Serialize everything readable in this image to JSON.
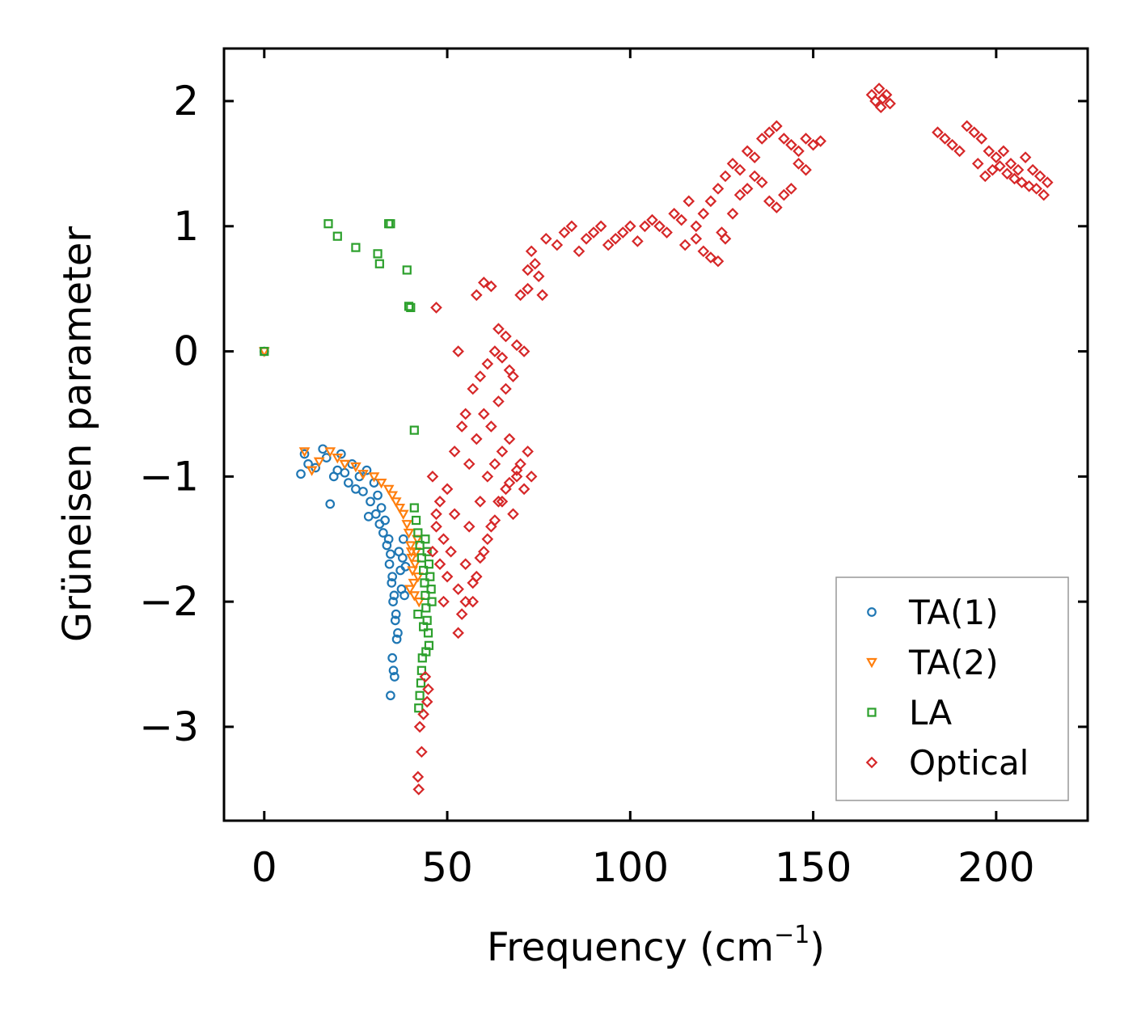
{
  "chart_data": {
    "type": "scatter",
    "title": "",
    "xlabel": "Frequency (cm",
    "xlabel_sup": "−1",
    "xlabel_close": ")",
    "ylabel": "Grüneisen parameter",
    "xlim": [
      -11,
      225
    ],
    "ylim": [
      -3.75,
      2.42
    ],
    "xticks": [
      0,
      50,
      100,
      150,
      200
    ],
    "xtick_labels": [
      "0",
      "50",
      "100",
      "150",
      "200"
    ],
    "yticks": [
      2,
      1,
      0,
      -1,
      -2,
      -3
    ],
    "ytick_labels": [
      "2",
      "1",
      "0",
      "−1",
      "−2",
      "−3"
    ],
    "legend_position": "lower-right",
    "series": [
      {
        "name": "TA(1)",
        "marker": "circle",
        "color": "#1f77b4",
        "points": [
          [
            0,
            0
          ],
          [
            10,
            -0.98
          ],
          [
            11,
            -0.82
          ],
          [
            12,
            -0.9
          ],
          [
            14,
            -0.93
          ],
          [
            16,
            -0.78
          ],
          [
            17,
            -0.85
          ],
          [
            18,
            -1.22
          ],
          [
            19,
            -1.0
          ],
          [
            20,
            -0.95
          ],
          [
            21,
            -0.82
          ],
          [
            22,
            -0.97
          ],
          [
            23,
            -1.05
          ],
          [
            24,
            -0.9
          ],
          [
            25,
            -1.1
          ],
          [
            26,
            -1.0
          ],
          [
            27,
            -1.12
          ],
          [
            28,
            -0.95
          ],
          [
            28.5,
            -1.32
          ],
          [
            29,
            -1.2
          ],
          [
            30,
            -1.05
          ],
          [
            30.5,
            -1.3
          ],
          [
            31,
            -1.15
          ],
          [
            31.5,
            -1.38
          ],
          [
            32,
            -1.25
          ],
          [
            32.5,
            -1.45
          ],
          [
            33,
            -1.35
          ],
          [
            33.5,
            -1.55
          ],
          [
            34,
            -1.5
          ],
          [
            34.2,
            -1.7
          ],
          [
            34.5,
            -1.62
          ],
          [
            34.8,
            -1.85
          ],
          [
            35,
            -1.8
          ],
          [
            35.2,
            -2.0
          ],
          [
            35.5,
            -1.95
          ],
          [
            35.8,
            -2.15
          ],
          [
            36,
            -2.1
          ],
          [
            36.2,
            -2.3
          ],
          [
            36.5,
            -2.25
          ],
          [
            35,
            -2.45
          ],
          [
            35.3,
            -2.55
          ],
          [
            35.6,
            -2.6
          ],
          [
            34.5,
            -2.75
          ],
          [
            36.8,
            -1.6
          ],
          [
            37.2,
            -1.75
          ],
          [
            37.5,
            -1.9
          ],
          [
            37.8,
            -1.65
          ],
          [
            38,
            -1.5
          ],
          [
            38.3,
            -1.95
          ],
          [
            38.6,
            -1.72
          ]
        ]
      },
      {
        "name": "TA(2)",
        "marker": "triangle",
        "color": "#ff7f0e",
        "points": [
          [
            0,
            0
          ],
          [
            11,
            -0.8
          ],
          [
            13,
            -0.95
          ],
          [
            15,
            -0.88
          ],
          [
            18,
            -0.8
          ],
          [
            20,
            -0.85
          ],
          [
            22,
            -0.9
          ],
          [
            25,
            -0.92
          ],
          [
            27,
            -0.98
          ],
          [
            30,
            -1.0
          ],
          [
            32,
            -1.05
          ],
          [
            34,
            -1.1
          ],
          [
            35,
            -1.15
          ],
          [
            36,
            -1.2
          ],
          [
            37,
            -1.25
          ],
          [
            38,
            -1.3
          ],
          [
            39,
            -1.38
          ],
          [
            39.5,
            -1.45
          ],
          [
            40,
            -1.55
          ],
          [
            40.3,
            -1.65
          ],
          [
            40.5,
            -1.75
          ],
          [
            40.8,
            -1.85
          ],
          [
            41,
            -1.95
          ],
          [
            41.2,
            -1.7
          ],
          [
            41.5,
            -1.6
          ],
          [
            41.8,
            -1.5
          ],
          [
            42,
            -1.8
          ],
          [
            42.3,
            -2.0
          ],
          [
            39.8,
            -1.9
          ],
          [
            40.2,
            -1.6
          ]
        ]
      },
      {
        "name": "LA",
        "marker": "square",
        "color": "#2ca02c",
        "points": [
          [
            0,
            0
          ],
          [
            17.5,
            1.02
          ],
          [
            20,
            0.92
          ],
          [
            25,
            0.83
          ],
          [
            31,
            0.78
          ],
          [
            31.5,
            0.7
          ],
          [
            34,
            1.02
          ],
          [
            34.5,
            1.02
          ],
          [
            39,
            0.65
          ],
          [
            39.5,
            0.36
          ],
          [
            40,
            0.35
          ],
          [
            41,
            -0.63
          ],
          [
            41,
            -1.25
          ],
          [
            41.5,
            -1.35
          ],
          [
            42,
            -1.45
          ],
          [
            42.5,
            -1.55
          ],
          [
            43,
            -1.65
          ],
          [
            43.5,
            -1.75
          ],
          [
            43.8,
            -1.85
          ],
          [
            44,
            -1.95
          ],
          [
            44.2,
            -2.05
          ],
          [
            44.5,
            -2.15
          ],
          [
            44.8,
            -2.25
          ],
          [
            45,
            -2.35
          ],
          [
            43.2,
            -2.45
          ],
          [
            43,
            -2.55
          ],
          [
            42.8,
            -2.65
          ],
          [
            42.5,
            -2.75
          ],
          [
            42.2,
            -2.85
          ],
          [
            44.5,
            -1.6
          ],
          [
            45,
            -1.7
          ],
          [
            45.3,
            -1.8
          ],
          [
            45.6,
            -1.9
          ],
          [
            45.8,
            -2.0
          ],
          [
            44,
            -1.5
          ],
          [
            43.5,
            -2.2
          ],
          [
            44.2,
            -2.4
          ],
          [
            42,
            -2.1
          ]
        ]
      },
      {
        "name": "Optical",
        "marker": "diamond",
        "color": "#d62728",
        "points": [
          [
            44,
            -2.6
          ],
          [
            44.5,
            -2.8
          ],
          [
            42.5,
            -3.0
          ],
          [
            43,
            -3.2
          ],
          [
            42,
            -3.4
          ],
          [
            42.2,
            -3.5
          ],
          [
            43.5,
            -2.9
          ],
          [
            44.8,
            -2.7
          ],
          [
            46,
            -1.6
          ],
          [
            47,
            -1.4
          ],
          [
            48,
            -1.2
          ],
          [
            49,
            -1.5
          ],
          [
            50,
            -1.1
          ],
          [
            51,
            -1.6
          ],
          [
            52,
            -1.3
          ],
          [
            53,
            -1.9
          ],
          [
            54,
            -2.1
          ],
          [
            55,
            -1.7
          ],
          [
            56,
            -1.4
          ],
          [
            57,
            -2.0
          ],
          [
            58,
            -1.8
          ],
          [
            59,
            -1.2
          ],
          [
            60,
            -1.6
          ],
          [
            61,
            -1.0
          ],
          [
            62,
            -1.4
          ],
          [
            63,
            -0.9
          ],
          [
            64,
            -1.2
          ],
          [
            65,
            -0.8
          ],
          [
            66,
            -1.1
          ],
          [
            67,
            -0.7
          ],
          [
            68,
            -1.3
          ],
          [
            69,
            -1.0
          ],
          [
            70,
            -0.9
          ],
          [
            71,
            -1.1
          ],
          [
            72,
            -0.8
          ],
          [
            73,
            -1.0
          ],
          [
            52,
            -0.8
          ],
          [
            54,
            -0.6
          ],
          [
            56,
            -0.9
          ],
          [
            58,
            -0.7
          ],
          [
            60,
            -0.5
          ],
          [
            62,
            -0.6
          ],
          [
            64,
            -0.4
          ],
          [
            66,
            -0.3
          ],
          [
            68,
            -0.2
          ],
          [
            55,
            -0.5
          ],
          [
            57,
            -0.3
          ],
          [
            59,
            -0.2
          ],
          [
            61,
            -0.1
          ],
          [
            63,
            0.0
          ],
          [
            65,
            -0.05
          ],
          [
            67,
            -0.15
          ],
          [
            69,
            0.05
          ],
          [
            71,
            0.0
          ],
          [
            53,
            0.0
          ],
          [
            60,
            0.55
          ],
          [
            62,
            0.52
          ],
          [
            58,
            0.45
          ],
          [
            47,
            0.35
          ],
          [
            64,
            0.18
          ],
          [
            66,
            0.12
          ],
          [
            70,
            0.45
          ],
          [
            72,
            0.5
          ],
          [
            53,
            -2.25
          ],
          [
            55,
            -2.0
          ],
          [
            57,
            -1.85
          ],
          [
            59,
            -1.65
          ],
          [
            61,
            -1.5
          ],
          [
            63,
            -1.35
          ],
          [
            65,
            -1.2
          ],
          [
            67,
            -1.05
          ],
          [
            69,
            -0.95
          ],
          [
            50,
            -1.8
          ],
          [
            49,
            -2.0
          ],
          [
            48,
            -1.7
          ],
          [
            47,
            -1.3
          ],
          [
            46,
            -1.0
          ],
          [
            76,
            0.45
          ],
          [
            75,
            0.6
          ],
          [
            74,
            0.7
          ],
          [
            73,
            0.8
          ],
          [
            72,
            0.65
          ],
          [
            77,
            0.9
          ],
          [
            80,
            0.85
          ],
          [
            82,
            0.95
          ],
          [
            84,
            1.0
          ],
          [
            86,
            0.8
          ],
          [
            88,
            0.9
          ],
          [
            90,
            0.95
          ],
          [
            92,
            1.0
          ],
          [
            94,
            0.85
          ],
          [
            96,
            0.9
          ],
          [
            98,
            0.95
          ],
          [
            100,
            1.0
          ],
          [
            102,
            0.88
          ],
          [
            104,
            1.0
          ],
          [
            106,
            1.05
          ],
          [
            108,
            1.0
          ],
          [
            110,
            0.95
          ],
          [
            112,
            1.1
          ],
          [
            114,
            1.05
          ],
          [
            116,
            1.2
          ],
          [
            118,
            1.0
          ],
          [
            120,
            1.1
          ],
          [
            122,
            1.2
          ],
          [
            124,
            1.3
          ],
          [
            126,
            1.4
          ],
          [
            128,
            1.5
          ],
          [
            130,
            1.45
          ],
          [
            132,
            1.6
          ],
          [
            134,
            1.55
          ],
          [
            136,
            1.7
          ],
          [
            138,
            1.75
          ],
          [
            140,
            1.8
          ],
          [
            142,
            1.7
          ],
          [
            144,
            1.65
          ],
          [
            146,
            1.6
          ],
          [
            148,
            1.7
          ],
          [
            150,
            1.65
          ],
          [
            152,
            1.68
          ],
          [
            120,
            0.8
          ],
          [
            122,
            0.75
          ],
          [
            124,
            0.72
          ],
          [
            126,
            0.9
          ],
          [
            118,
            0.9
          ],
          [
            115,
            0.85
          ],
          [
            125,
            0.95
          ],
          [
            128,
            1.1
          ],
          [
            130,
            1.25
          ],
          [
            132,
            1.3
          ],
          [
            134,
            1.4
          ],
          [
            136,
            1.35
          ],
          [
            138,
            1.2
          ],
          [
            140,
            1.15
          ],
          [
            142,
            1.25
          ],
          [
            144,
            1.3
          ],
          [
            146,
            1.5
          ],
          [
            148,
            1.45
          ],
          [
            166,
            2.05
          ],
          [
            167,
            2.0
          ],
          [
            168,
            2.1
          ],
          [
            169,
            2.02
          ],
          [
            170,
            2.05
          ],
          [
            171,
            1.98
          ],
          [
            168.5,
            1.95
          ],
          [
            184,
            1.75
          ],
          [
            186,
            1.7
          ],
          [
            188,
            1.65
          ],
          [
            190,
            1.6
          ],
          [
            192,
            1.8
          ],
          [
            194,
            1.75
          ],
          [
            196,
            1.7
          ],
          [
            198,
            1.6
          ],
          [
            200,
            1.55
          ],
          [
            202,
            1.6
          ],
          [
            204,
            1.5
          ],
          [
            206,
            1.45
          ],
          [
            208,
            1.55
          ],
          [
            210,
            1.45
          ],
          [
            212,
            1.4
          ],
          [
            214,
            1.35
          ],
          [
            213,
            1.25
          ],
          [
            211,
            1.3
          ],
          [
            195,
            1.5
          ],
          [
            197,
            1.4
          ],
          [
            199,
            1.45
          ],
          [
            201,
            1.48
          ],
          [
            203,
            1.42
          ],
          [
            205,
            1.38
          ],
          [
            207,
            1.35
          ],
          [
            209,
            1.32
          ]
        ]
      }
    ]
  }
}
